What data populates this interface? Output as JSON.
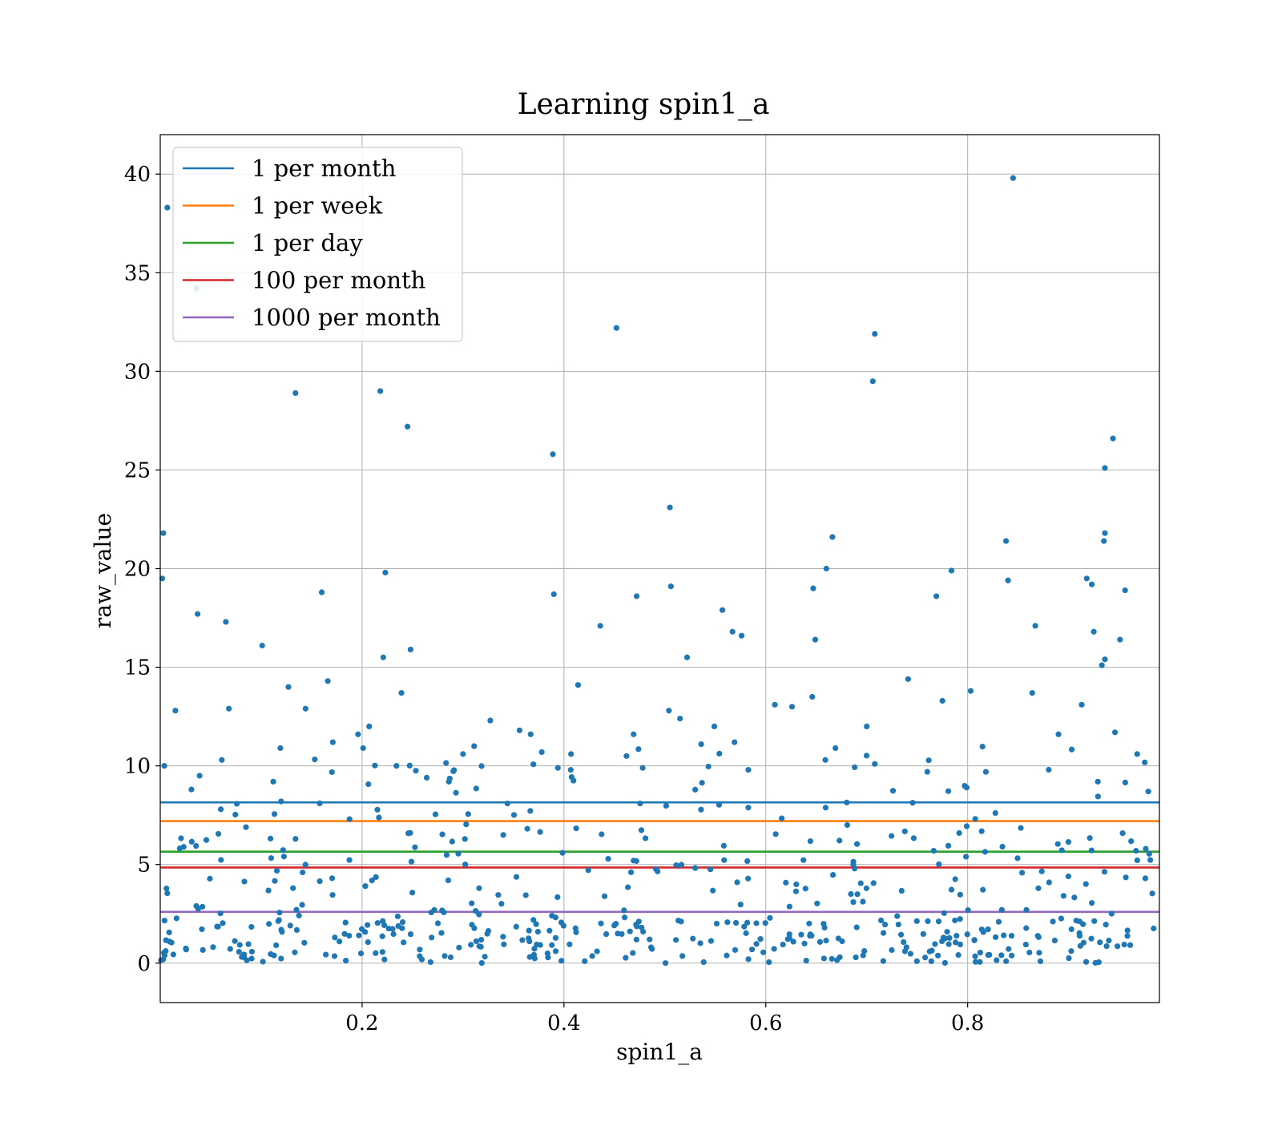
{
  "chart_data": {
    "type": "scatter",
    "title": "Learning spin1_a",
    "xlabel": "spin1_a",
    "ylabel": "raw_value",
    "xlim": [
      0.0,
      0.99
    ],
    "ylim": [
      -2,
      42
    ],
    "xticks": [
      0.2,
      0.4,
      0.6,
      0.8
    ],
    "xtick_labels": [
      "0.2",
      "0.4",
      "0.6",
      "0.8"
    ],
    "yticks": [
      0,
      5,
      10,
      15,
      20,
      25,
      30,
      35,
      40
    ],
    "ytick_labels": [
      "0",
      "5",
      "10",
      "15",
      "20",
      "25",
      "30",
      "35",
      "40"
    ],
    "grid": true,
    "legend_position": "top-left",
    "colors": {
      "points": "#1f77b4",
      "one_per_month": "#1f77b4",
      "one_per_week": "#ff7f0e",
      "one_per_day": "#2ca02c",
      "hundred_per_month": "#d62728",
      "thousand_per_month": "#9467bd"
    },
    "lines": [
      {
        "name": "1 per month",
        "y": 8.15,
        "color": "#1f77b4"
      },
      {
        "name": "1 per week",
        "y": 7.2,
        "color": "#ff7f0e"
      },
      {
        "name": "1 per day",
        "y": 5.65,
        "color": "#2ca02c"
      },
      {
        "name": "100 per month",
        "y": 4.85,
        "color": "#d62728"
      },
      {
        "name": "1000 per month",
        "y": 2.6,
        "color": "#9467bd"
      }
    ],
    "points": [
      [
        0.002,
        19.5
      ],
      [
        0.003,
        21.8
      ],
      [
        0.004,
        10.0
      ],
      [
        0.007,
        38.3
      ],
      [
        0.015,
        12.8
      ],
      [
        0.036,
        34.2
      ],
      [
        0.037,
        17.7
      ],
      [
        0.039,
        9.5
      ],
      [
        0.065,
        17.3
      ],
      [
        0.068,
        12.9
      ],
      [
        0.061,
        10.3
      ],
      [
        0.06,
        7.8
      ],
      [
        0.101,
        16.1
      ],
      [
        0.112,
        9.2
      ],
      [
        0.119,
        10.9
      ],
      [
        0.134,
        28.9
      ],
      [
        0.127,
        14.0
      ],
      [
        0.144,
        12.9
      ],
      [
        0.158,
        8.1
      ],
      [
        0.16,
        18.8
      ],
      [
        0.166,
        14.3
      ],
      [
        0.171,
        11.2
      ],
      [
        0.196,
        11.6
      ],
      [
        0.201,
        10.9
      ],
      [
        0.207,
        12.0
      ],
      [
        0.218,
        29.0
      ],
      [
        0.223,
        19.8
      ],
      [
        0.221,
        15.5
      ],
      [
        0.239,
        13.7
      ],
      [
        0.245,
        27.2
      ],
      [
        0.248,
        15.9
      ],
      [
        0.234,
        10.0
      ],
      [
        0.264,
        9.4
      ],
      [
        0.286,
        9.2
      ],
      [
        0.327,
        12.3
      ],
      [
        0.311,
        11.0
      ],
      [
        0.3,
        10.6
      ],
      [
        0.356,
        11.8
      ],
      [
        0.367,
        11.6
      ],
      [
        0.378,
        10.7
      ],
      [
        0.389,
        25.8
      ],
      [
        0.39,
        18.7
      ],
      [
        0.394,
        9.9
      ],
      [
        0.407,
        10.6
      ],
      [
        0.414,
        14.1
      ],
      [
        0.436,
        17.1
      ],
      [
        0.452,
        32.2
      ],
      [
        0.472,
        18.6
      ],
      [
        0.469,
        11.6
      ],
      [
        0.478,
        9.9
      ],
      [
        0.462,
        10.5
      ],
      [
        0.505,
        23.1
      ],
      [
        0.506,
        19.1
      ],
      [
        0.504,
        12.8
      ],
      [
        0.515,
        12.4
      ],
      [
        0.522,
        15.5
      ],
      [
        0.536,
        11.1
      ],
      [
        0.549,
        12.0
      ],
      [
        0.557,
        17.9
      ],
      [
        0.567,
        16.8
      ],
      [
        0.576,
        16.6
      ],
      [
        0.569,
        11.2
      ],
      [
        0.609,
        13.1
      ],
      [
        0.626,
        13.0
      ],
      [
        0.646,
        13.5
      ],
      [
        0.647,
        19.0
      ],
      [
        0.649,
        16.4
      ],
      [
        0.66,
        20.0
      ],
      [
        0.666,
        21.6
      ],
      [
        0.659,
        10.3
      ],
      [
        0.669,
        10.9
      ],
      [
        0.708,
        31.9
      ],
      [
        0.706,
        29.5
      ],
      [
        0.7,
        12.0
      ],
      [
        0.708,
        10.1
      ],
      [
        0.741,
        14.4
      ],
      [
        0.76,
        9.7
      ],
      [
        0.769,
        18.6
      ],
      [
        0.775,
        13.3
      ],
      [
        0.784,
        19.9
      ],
      [
        0.803,
        13.8
      ],
      [
        0.799,
        8.9
      ],
      [
        0.838,
        21.4
      ],
      [
        0.84,
        19.4
      ],
      [
        0.845,
        39.8
      ],
      [
        0.864,
        13.7
      ],
      [
        0.867,
        17.1
      ],
      [
        0.89,
        11.6
      ],
      [
        0.918,
        19.5
      ],
      [
        0.923,
        19.2
      ],
      [
        0.925,
        16.8
      ],
      [
        0.933,
        15.1
      ],
      [
        0.936,
        15.4
      ],
      [
        0.936,
        21.8
      ],
      [
        0.935,
        21.4
      ],
      [
        0.936,
        25.1
      ],
      [
        0.944,
        26.6
      ],
      [
        0.946,
        11.7
      ],
      [
        0.951,
        16.4
      ],
      [
        0.956,
        18.9
      ],
      [
        0.913,
        13.1
      ],
      [
        0.929,
        9.2
      ],
      [
        0.968,
        10.6
      ],
      [
        0.979,
        8.7
      ]
    ]
  }
}
